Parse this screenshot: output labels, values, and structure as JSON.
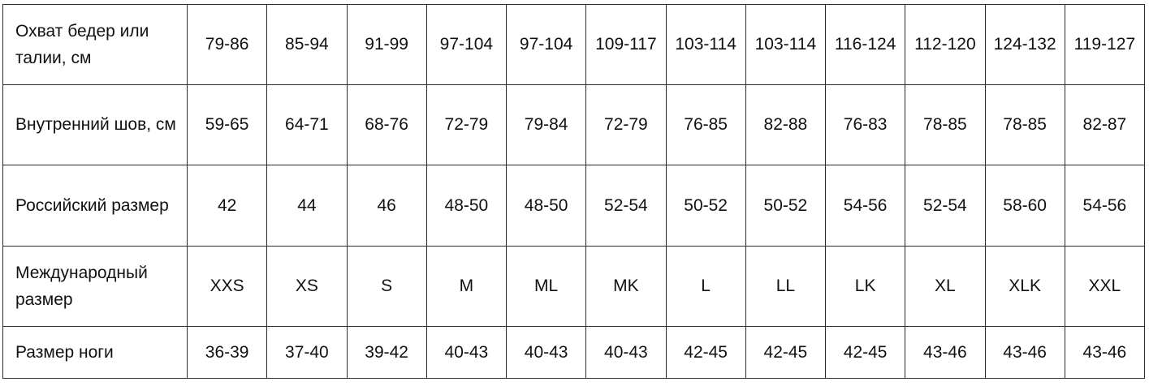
{
  "rows": [
    {
      "label": "Охват бедер или талии, см",
      "values": [
        "79-86",
        "85-94",
        "91-99",
        "97-104",
        "97-104",
        "109-117",
        "103-114",
        "103-114",
        "116-124",
        "112-120",
        "124-132",
        "119-127"
      ]
    },
    {
      "label": "Внутренний шов, см",
      "values": [
        "59-65",
        "64-71",
        "68-76",
        "72-79",
        "79-84",
        "72-79",
        "76-85",
        "82-88",
        "76-83",
        "78-85",
        "78-85",
        "82-87"
      ]
    },
    {
      "label": "Российский размер",
      "values": [
        "42",
        "44",
        "46",
        "48-50",
        "48-50",
        "52-54",
        "50-52",
        "50-52",
        "54-56",
        "52-54",
        "58-60",
        "54-56"
      ]
    },
    {
      "label": "Международный размер",
      "values": [
        "XXS",
        "XS",
        "S",
        "M",
        "ML",
        "MK",
        "L",
        "LL",
        "LK",
        "XL",
        "XLK",
        "XXL"
      ]
    },
    {
      "label": "Размер ноги",
      "values": [
        "36-39",
        "37-40",
        "39-42",
        "40-43",
        "40-43",
        "40-43",
        "42-45",
        "42-45",
        "42-45",
        "43-46",
        "43-46",
        "43-46"
      ]
    }
  ]
}
